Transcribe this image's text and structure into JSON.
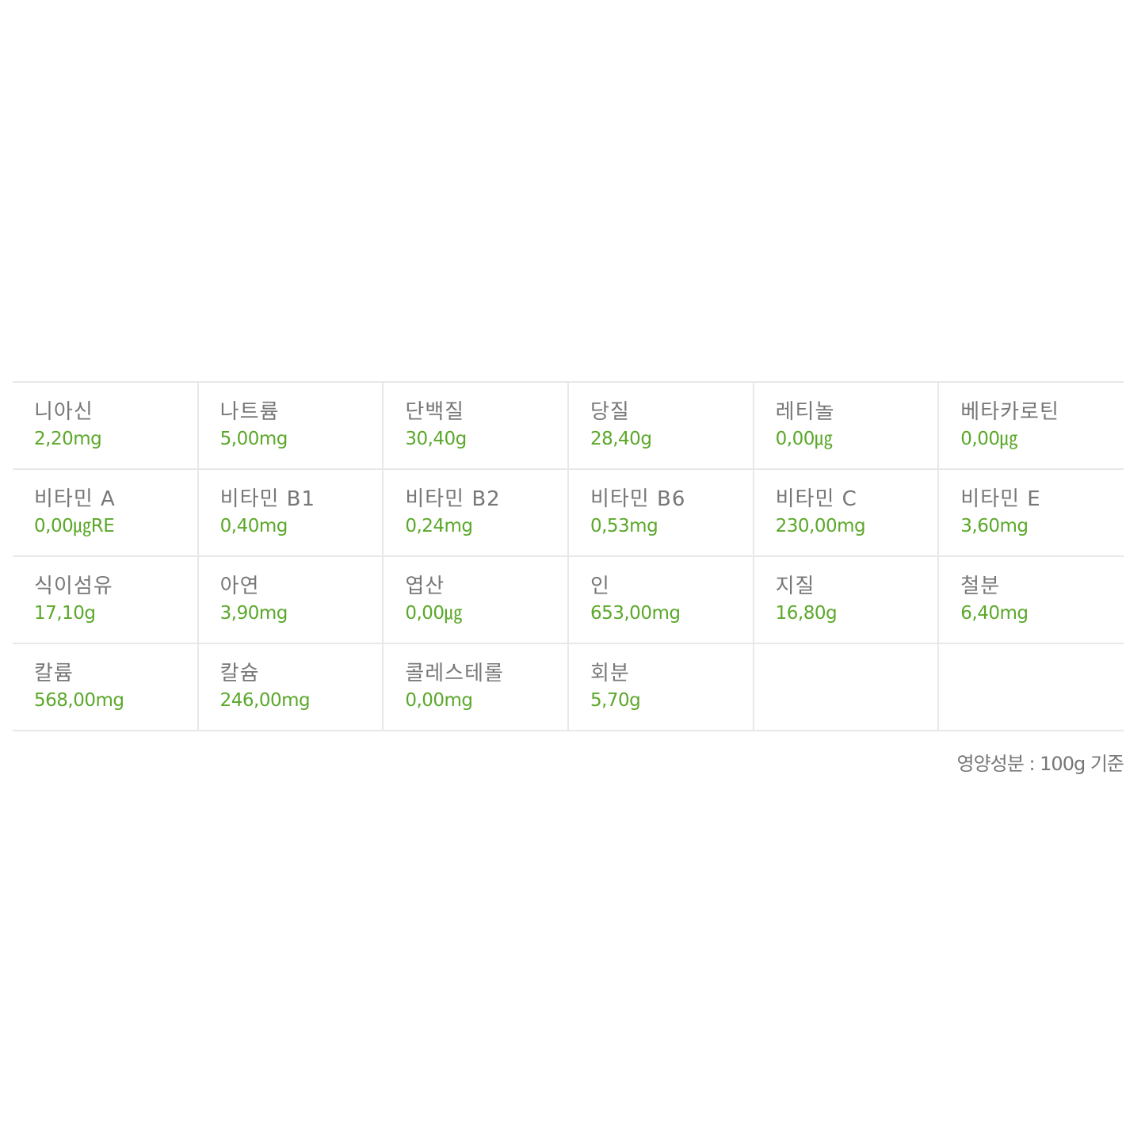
{
  "nutrients": [
    [
      {
        "label": "니아신",
        "value": "2,20mg"
      },
      {
        "label": "나트륨",
        "value": "5,00mg"
      },
      {
        "label": "단백질",
        "value": "30,40g"
      },
      {
        "label": "당질",
        "value": "28,40g"
      },
      {
        "label": "레티놀",
        "value": "0,00㎍"
      },
      {
        "label": "베타카로틴",
        "value": "0,00㎍"
      }
    ],
    [
      {
        "label": "비타민 A",
        "value": "0,00㎍RE"
      },
      {
        "label": "비타민 B1",
        "value": "0,40mg"
      },
      {
        "label": "비타민 B2",
        "value": "0,24mg"
      },
      {
        "label": "비타민 B6",
        "value": "0,53mg"
      },
      {
        "label": "비타민 C",
        "value": "230,00mg"
      },
      {
        "label": "비타민 E",
        "value": "3,60mg"
      }
    ],
    [
      {
        "label": "식이섬유",
        "value": "17,10g"
      },
      {
        "label": "아연",
        "value": "3,90mg"
      },
      {
        "label": "엽산",
        "value": "0,00㎍"
      },
      {
        "label": "인",
        "value": "653,00mg"
      },
      {
        "label": "지질",
        "value": "16,80g"
      },
      {
        "label": "철분",
        "value": "6,40mg"
      }
    ],
    [
      {
        "label": "칼륨",
        "value": "568,00mg"
      },
      {
        "label": "칼슘",
        "value": "246,00mg"
      },
      {
        "label": "콜레스테롤",
        "value": "0,00mg"
      },
      {
        "label": "회분",
        "value": "5,70g"
      }
    ]
  ],
  "basis_note": "영양성분 : 100g 기준",
  "colors": {
    "label": "#777777",
    "value": "#5ba82a",
    "border": "#e8e8e8"
  }
}
